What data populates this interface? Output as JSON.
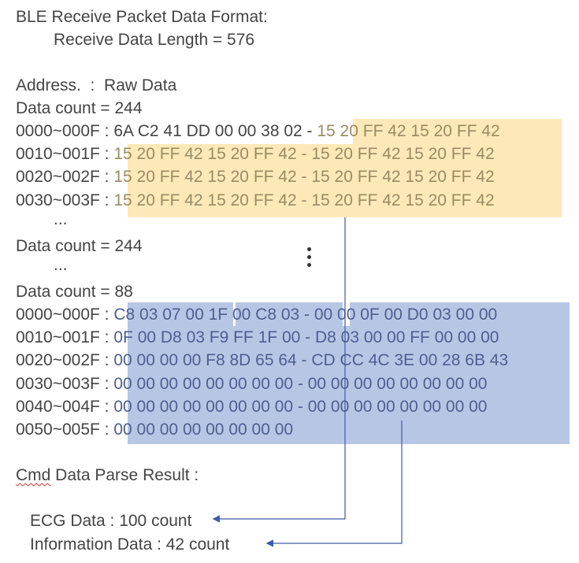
{
  "header": {
    "title": "BLE Receive Packet Data Format:",
    "length_line": "Receive Data Length = 576"
  },
  "columns_header": "Address.  :  Raw Data",
  "block1": {
    "count_line": "Data count = 244",
    "rows": [
      {
        "addr": "0000~000F :",
        "plain": "6A C2 41 DD 00 00 38 02 - ",
        "hl": "15 20 FF 42 15 20 FF 42"
      },
      {
        "addr": "0010~001F :",
        "hl": "15 20 FF 42 15 20 FF 42 - 15 20 FF 42 15 20 FF 42"
      },
      {
        "addr": "0020~002F :",
        "hl": "15 20 FF 42 15 20 FF 42 - 15 20 FF 42 15 20 FF 42"
      },
      {
        "addr": "0030~003F :",
        "hl": "15 20 FF 42 15 20 FF 42 - 15 20 FF 42 15 20 FF 42"
      }
    ],
    "ellipsis": "..."
  },
  "block2": {
    "count_line": "Data count = 244",
    "ellipsis": "..."
  },
  "block3": {
    "count_line": "Data count = 88",
    "rows": [
      {
        "addr": "0000~000F :",
        "hl": "C8 03 07 00 1F 00 C8 03 - 00 00 0F 00 D0 03 00 00"
      },
      {
        "addr": "0010~001F :",
        "hl": "0F 00 D8 03 F9 FF 1F 00 - D8 03 00 00 FF 00 00 00"
      },
      {
        "addr": "0020~002F :",
        "hl": "00 00 00 00 F8 8D 65 64 - CD CC 4C 3E 00 28 6B 43"
      },
      {
        "addr": "0030~003F :",
        "hl": "00 00 00 00 00 00 00 00 - 00 00 00 00 00 00 00 00"
      },
      {
        "addr": "0040~004F :",
        "hl": "00 00 00 00 00 00 00 00 - 00 00 00 00 00 00 00 00"
      },
      {
        "addr": "0050~005F :",
        "hl": "00 00 00 00 00 00 00 00"
      }
    ]
  },
  "result": {
    "cmd_word": "Cmd",
    "title_rest": " Data Parse Result :",
    "ecg": "ECG Data : 100 count",
    "info": "Information Data : 42 count"
  },
  "colors": {
    "ecg_highlight": "#fde9b8",
    "info_highlight": "#b8c6e6",
    "arrow": "#3f5aa8"
  }
}
